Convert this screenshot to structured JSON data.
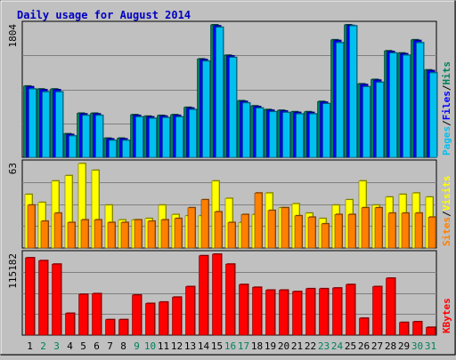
{
  "chart_data": [
    {
      "type": "bar",
      "title": "Daily usage for August 2014",
      "ymax_label": "1804",
      "categories": [
        "1",
        "2",
        "3",
        "4",
        "5",
        "6",
        "7",
        "8",
        "9",
        "10",
        "11",
        "12",
        "13",
        "14",
        "15",
        "16",
        "17",
        "18",
        "19",
        "20",
        "21",
        "22",
        "23",
        "24",
        "25",
        "26",
        "27",
        "28",
        "29",
        "30",
        "31"
      ],
      "weekend_days": [
        "2",
        "3",
        "9",
        "10",
        "16",
        "17",
        "23",
        "24",
        "30",
        "31"
      ],
      "legend": [
        "Pages",
        "Files",
        "Hits"
      ],
      "ylim": [
        0,
        1804
      ],
      "series": [
        {
          "name": "Hits",
          "color": "#00805c",
          "values": [
            970,
            930,
            930,
            320,
            600,
            600,
            260,
            260,
            580,
            560,
            570,
            580,
            680,
            1340,
            1804,
            1390,
            770,
            700,
            650,
            640,
            620,
            620,
            760,
            1600,
            1804,
            1000,
            1060,
            1450,
            1420,
            1600,
            1190
          ]
        },
        {
          "name": "Files",
          "color": "#0000ff",
          "values": [
            960,
            920,
            920,
            310,
            590,
            590,
            250,
            250,
            570,
            550,
            560,
            570,
            670,
            1330,
            1790,
            1380,
            760,
            690,
            640,
            630,
            610,
            610,
            750,
            1590,
            1795,
            990,
            1050,
            1440,
            1410,
            1590,
            1180
          ]
        },
        {
          "name": "Pages",
          "color": "#00c0f0",
          "values": [
            930,
            890,
            890,
            290,
            570,
            570,
            230,
            230,
            550,
            530,
            540,
            550,
            650,
            1310,
            1770,
            1360,
            740,
            670,
            620,
            610,
            590,
            590,
            730,
            1560,
            1790,
            960,
            1020,
            1420,
            1390,
            1560,
            1150
          ]
        }
      ]
    },
    {
      "type": "bar",
      "ymax_label": "63",
      "legend": [
        "Sites",
        "Visits"
      ],
      "ylim": [
        0,
        63
      ],
      "series": [
        {
          "name": "Visits",
          "color": "#ffff00",
          "values": [
            40,
            34,
            50,
            54,
            63,
            58,
            32,
            21,
            21,
            22,
            32,
            25,
            24,
            24,
            50,
            37,
            19,
            25,
            41,
            30,
            33,
            26,
            22,
            32,
            36,
            50,
            32,
            38,
            40,
            41,
            38
          ]
        },
        {
          "name": "Sites",
          "color": "#ff8000",
          "values": [
            32,
            20,
            26,
            19,
            21,
            21,
            19,
            19,
            21,
            20,
            21,
            22,
            30,
            36,
            27,
            19,
            25,
            41,
            28,
            30,
            24,
            23,
            18,
            25,
            25,
            30,
            30,
            26,
            26,
            26,
            23
          ]
        }
      ]
    },
    {
      "type": "bar",
      "ymax_label": "115182",
      "legend": [
        "KBytes"
      ],
      "ylim": [
        0,
        115182
      ],
      "series": [
        {
          "name": "KBytes",
          "color": "#ff0000",
          "values": [
            110000,
            106000,
            101000,
            31000,
            58000,
            59000,
            22000,
            22000,
            57000,
            45000,
            47000,
            54000,
            69000,
            113000,
            115182,
            101000,
            72000,
            68000,
            64000,
            64000,
            62000,
            66000,
            66000,
            67000,
            72000,
            24000,
            69000,
            81000,
            18000,
            19000,
            11000
          ]
        }
      ]
    }
  ]
}
